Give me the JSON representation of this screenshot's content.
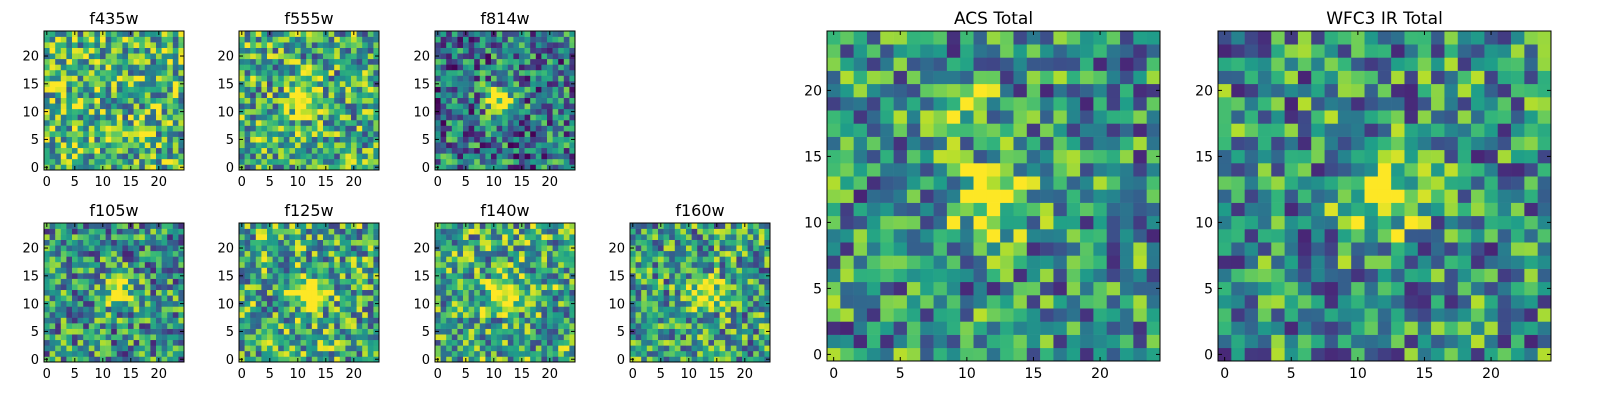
{
  "chart_data": [
    {
      "type": "heatmap",
      "title": "f435w",
      "xticks": [
        "0",
        "5",
        "10",
        "15",
        "20"
      ],
      "yticks": [
        "0",
        "5",
        "10",
        "15",
        "20"
      ],
      "xlim": [
        -0.5,
        24.5
      ],
      "ylim": [
        -0.5,
        24.5
      ],
      "grid": false,
      "colormap": "viridis",
      "peak": null,
      "background": 0.65
    },
    {
      "type": "heatmap",
      "title": "f555w",
      "xticks": [
        "0",
        "5",
        "10",
        "15",
        "20"
      ],
      "yticks": [
        "0",
        "5",
        "10",
        "15",
        "20"
      ],
      "xlim": [
        -0.5,
        24.5
      ],
      "ylim": [
        -0.5,
        24.5
      ],
      "grid": false,
      "colormap": "viridis",
      "peak": [
        11,
        12
      ],
      "background": 0.6
    },
    {
      "type": "heatmap",
      "title": "f814w",
      "xticks": [
        "0",
        "5",
        "10",
        "15",
        "20"
      ],
      "yticks": [
        "0",
        "5",
        "10",
        "15",
        "20"
      ],
      "xlim": [
        -0.5,
        24.5
      ],
      "ylim": [
        -0.5,
        24.5
      ],
      "grid": false,
      "colormap": "viridis",
      "peak": [
        11,
        12
      ],
      "background": 0.4
    },
    {
      "type": "heatmap",
      "title": "f105w",
      "xticks": [
        "0",
        "5",
        "10",
        "15",
        "20"
      ],
      "yticks": [
        "0",
        "5",
        "10",
        "15",
        "20"
      ],
      "xlim": [
        -0.5,
        24.5
      ],
      "ylim": [
        -0.5,
        24.5
      ],
      "grid": false,
      "colormap": "viridis",
      "peak": [
        13,
        12
      ],
      "background": 0.5
    },
    {
      "type": "heatmap",
      "title": "f125w",
      "xticks": [
        "0",
        "5",
        "10",
        "15",
        "20"
      ],
      "yticks": [
        "0",
        "5",
        "10",
        "15",
        "20"
      ],
      "xlim": [
        -0.5,
        24.5
      ],
      "ylim": [
        -0.5,
        24.5
      ],
      "grid": false,
      "colormap": "viridis",
      "peak": [
        12,
        12
      ],
      "background": 0.6
    },
    {
      "type": "heatmap",
      "title": "f140w",
      "xticks": [
        "0",
        "5",
        "10",
        "15",
        "20"
      ],
      "yticks": [
        "0",
        "5",
        "10",
        "15",
        "20"
      ],
      "xlim": [
        -0.5,
        24.5
      ],
      "ylim": [
        -0.5,
        24.5
      ],
      "grid": false,
      "colormap": "viridis",
      "peak": [
        12,
        12
      ],
      "background": 0.6
    },
    {
      "type": "heatmap",
      "title": "f160w",
      "xticks": [
        "0",
        "5",
        "10",
        "15",
        "20"
      ],
      "yticks": [
        "0",
        "5",
        "10",
        "15",
        "20"
      ],
      "xlim": [
        -0.5,
        24.5
      ],
      "ylim": [
        -0.5,
        24.5
      ],
      "grid": false,
      "colormap": "viridis",
      "peak": [
        13,
        12
      ],
      "background": 0.55
    },
    {
      "type": "heatmap",
      "title": "ACS Total",
      "xticks": [
        "0",
        "5",
        "10",
        "15",
        "20"
      ],
      "yticks": [
        "0",
        "5",
        "10",
        "15",
        "20"
      ],
      "xlim": [
        -0.5,
        24.5
      ],
      "ylim": [
        -0.5,
        24.5
      ],
      "grid": false,
      "colormap": "viridis",
      "peak": [
        12,
        12
      ],
      "secondary_peak": [
        10,
        19
      ],
      "background": 0.5
    },
    {
      "type": "heatmap",
      "title": "WFC3 IR Total",
      "xticks": [
        "0",
        "5",
        "10",
        "15",
        "20"
      ],
      "yticks": [
        "0",
        "5",
        "10",
        "15",
        "20"
      ],
      "xlim": [
        -0.5,
        24.5
      ],
      "ylim": [
        -0.5,
        24.5
      ],
      "grid": false,
      "colormap": "viridis",
      "peak": [
        12,
        12
      ],
      "background": 0.5
    }
  ]
}
